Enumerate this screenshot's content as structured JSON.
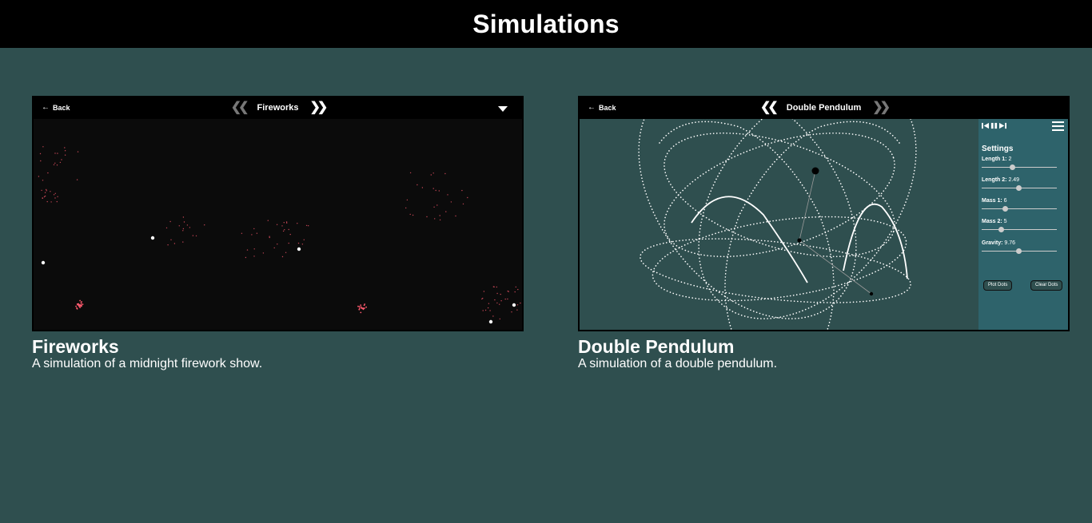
{
  "header": {
    "title": "Simulations"
  },
  "cards": [
    {
      "title": "Fireworks",
      "description": "A simulation of a midnight firework show.",
      "preview": {
        "back_label": "Back",
        "nav_title": "Fireworks",
        "prev_icon": "double-chevron-left-icon",
        "next_icon": "double-chevron-right-icon",
        "menu_icon": "caret-down-icon",
        "background": "#0b0b0b"
      }
    },
    {
      "title": "Double Pendulum",
      "description": "A simulation of a double pendulum.",
      "preview": {
        "back_label": "Back",
        "nav_title": "Double Pendulum",
        "prev_icon": "double-chevron-left-icon",
        "next_icon": "double-chevron-right-icon",
        "menu_icon": "hamburger-icon",
        "background": "#2f4f4f",
        "settings": {
          "title": "Settings",
          "sliders": [
            {
              "label": "Length 1:",
              "value": "2",
              "fraction": 0.4
            },
            {
              "label": "Length 2:",
              "value": "2.49",
              "fraction": 0.49
            },
            {
              "label": "Mass 1:",
              "value": "6",
              "fraction": 0.31
            },
            {
              "label": "Mass 2:",
              "value": "5",
              "fraction": 0.25
            },
            {
              "label": "Gravity:",
              "value": "9.76",
              "fraction": 0.49
            }
          ],
          "plot_button": "Plot Dots",
          "clear_button": "Clear Dots"
        }
      }
    }
  ],
  "colors": {
    "page_bg": "#2f4f4f",
    "header_bg": "#000000",
    "panel_bg": "#2e636b",
    "firework_spark": "#ff5a6e"
  }
}
